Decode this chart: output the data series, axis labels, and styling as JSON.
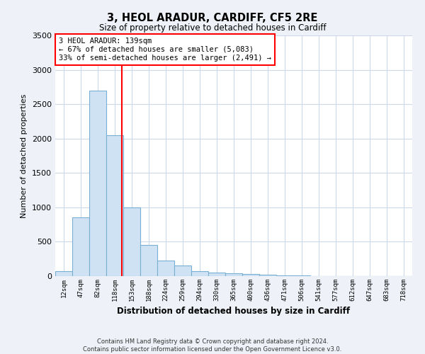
{
  "title1": "3, HEOL ARADUR, CARDIFF, CF5 2RE",
  "title2": "Size of property relative to detached houses in Cardiff",
  "xlabel": "Distribution of detached houses by size in Cardiff",
  "ylabel": "Number of detached properties",
  "categories": [
    "12sqm",
    "47sqm",
    "82sqm",
    "118sqm",
    "153sqm",
    "188sqm",
    "224sqm",
    "259sqm",
    "294sqm",
    "330sqm",
    "365sqm",
    "400sqm",
    "436sqm",
    "471sqm",
    "506sqm",
    "541sqm",
    "577sqm",
    "612sqm",
    "647sqm",
    "683sqm",
    "718sqm"
  ],
  "values": [
    75,
    850,
    2700,
    2050,
    1000,
    450,
    225,
    150,
    75,
    50,
    40,
    30,
    20,
    10,
    8,
    5,
    4,
    3,
    2,
    2,
    1
  ],
  "bar_color": "#cfe2f3",
  "bar_edge_color": "#7aafd4",
  "grid_color": "#ccd9e8",
  "plot_bg_color": "#ffffff",
  "fig_bg_color": "#eef2f8",
  "annotation_text": "3 HEOL ARADUR: 139sqm\n← 67% of detached houses are smaller (5,083)\n33% of semi-detached houses are larger (2,491) →",
  "red_line_x": 3.4,
  "annotation_box_color": "white",
  "annotation_border_color": "red",
  "footer": "Contains HM Land Registry data © Crown copyright and database right 2024.\nContains public sector information licensed under the Open Government Licence v3.0.",
  "ylim": [
    0,
    3500
  ],
  "yticks": [
    0,
    500,
    1000,
    1500,
    2000,
    2500,
    3000,
    3500
  ]
}
